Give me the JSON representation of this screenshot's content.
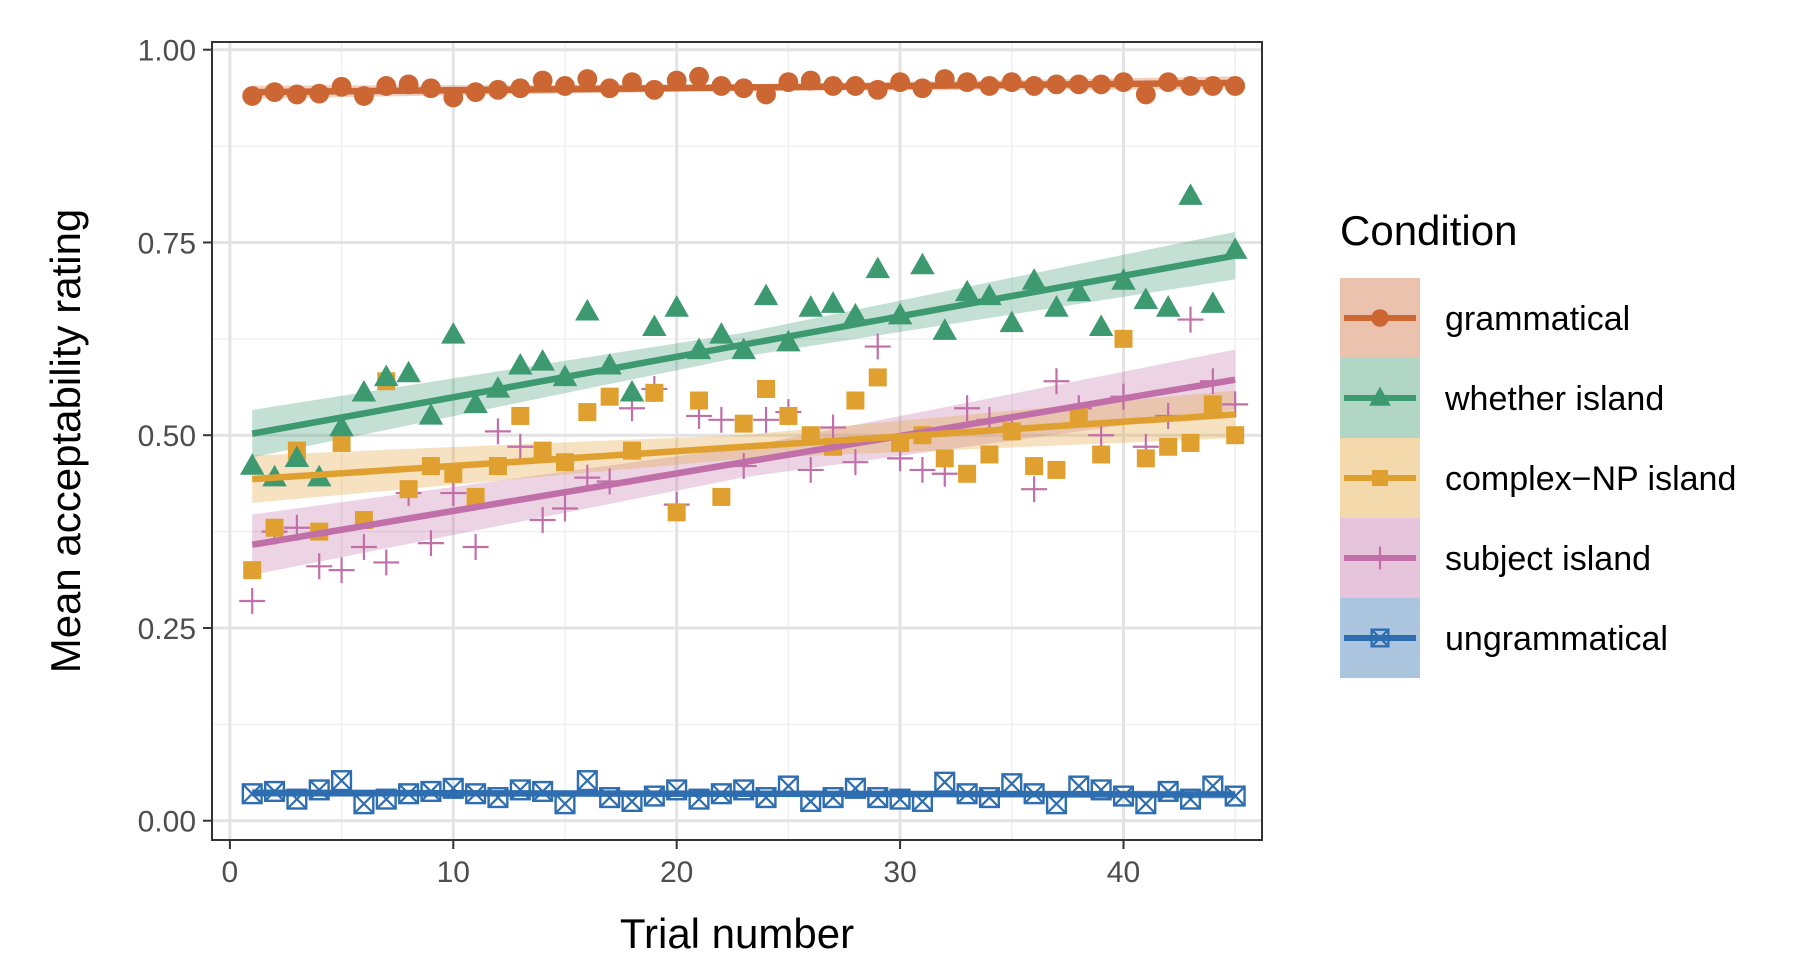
{
  "chart_data": {
    "type": "scatter",
    "xlabel": "Trial number",
    "ylabel": "Mean acceptability rating",
    "xlim": [
      -0.8,
      46.2
    ],
    "ylim": [
      -0.025,
      1.01
    ],
    "x_ticks": [
      0,
      10,
      20,
      30,
      40
    ],
    "y_ticks": [
      0.0,
      0.25,
      0.5,
      0.75,
      1.0
    ],
    "y_tick_labels": [
      "0.00",
      "0.25",
      "0.50",
      "0.75",
      "1.00"
    ],
    "grid": true,
    "legend": {
      "title": "Condition",
      "position": "right"
    },
    "x": [
      1,
      2,
      3,
      4,
      5,
      6,
      7,
      8,
      9,
      10,
      11,
      12,
      13,
      14,
      15,
      16,
      17,
      18,
      19,
      20,
      21,
      22,
      23,
      24,
      25,
      26,
      27,
      28,
      29,
      30,
      31,
      32,
      33,
      34,
      35,
      36,
      37,
      38,
      39,
      40,
      41,
      42,
      43,
      44,
      45
    ],
    "series": [
      {
        "name": "grammatical",
        "color": "#cc6633",
        "shape": "circle",
        "values": [
          0.94,
          0.945,
          0.942,
          0.943,
          0.952,
          0.94,
          0.953,
          0.955,
          0.95,
          0.938,
          0.945,
          0.948,
          0.95,
          0.96,
          0.953,
          0.962,
          0.95,
          0.958,
          0.948,
          0.96,
          0.965,
          0.953,
          0.95,
          0.942,
          0.958,
          0.96,
          0.953,
          0.953,
          0.948,
          0.958,
          0.95,
          0.962,
          0.958,
          0.953,
          0.958,
          0.953,
          0.955,
          0.955,
          0.955,
          0.958,
          0.942,
          0.958,
          0.953,
          0.953,
          0.953
        ],
        "fit": [
          0.945,
          0.957
        ],
        "band": 0.006
      },
      {
        "name": "whether island",
        "color": "#3d9970",
        "shape": "triangle",
        "values": [
          0.46,
          0.445,
          0.47,
          0.445,
          0.51,
          0.555,
          0.575,
          0.58,
          0.525,
          0.63,
          0.54,
          0.56,
          0.59,
          0.595,
          0.575,
          0.66,
          0.59,
          0.555,
          0.64,
          0.665,
          0.61,
          0.63,
          0.61,
          0.68,
          0.62,
          0.665,
          0.67,
          0.655,
          0.715,
          0.655,
          0.72,
          0.635,
          0.685,
          0.68,
          0.645,
          0.7,
          0.665,
          0.685,
          0.64,
          0.7,
          0.675,
          0.665,
          0.81,
          0.67,
          0.74
        ],
        "fit": [
          0.502,
          0.733
        ],
        "band": 0.022
      },
      {
        "name": "complex−NP island",
        "color": "#e0a030",
        "shape": "square",
        "values": [
          0.325,
          0.38,
          0.48,
          0.375,
          0.49,
          0.39,
          0.57,
          0.43,
          0.46,
          0.45,
          0.42,
          0.46,
          0.525,
          0.48,
          0.465,
          0.53,
          0.55,
          0.48,
          0.555,
          0.4,
          0.545,
          0.42,
          0.515,
          0.56,
          0.525,
          0.5,
          0.485,
          0.545,
          0.575,
          0.49,
          0.5,
          0.47,
          0.45,
          0.475,
          0.505,
          0.46,
          0.455,
          0.525,
          0.475,
          0.625,
          0.47,
          0.485,
          0.49,
          0.54,
          0.5
        ],
        "fit": [
          0.443,
          0.527
        ],
        "band": 0.022
      },
      {
        "name": "subject island",
        "color": "#c06fa8",
        "shape": "cross",
        "values": [
          0.285,
          0.375,
          0.38,
          0.33,
          0.325,
          0.355,
          0.335,
          0.425,
          0.36,
          0.425,
          0.355,
          0.505,
          0.485,
          0.39,
          0.405,
          0.445,
          0.44,
          0.535,
          0.56,
          0.41,
          0.525,
          0.52,
          0.46,
          0.52,
          0.53,
          0.455,
          0.51,
          0.465,
          0.615,
          0.47,
          0.455,
          0.45,
          0.535,
          0.52,
          0.51,
          0.43,
          0.57,
          0.535,
          0.5,
          0.55,
          0.485,
          0.525,
          0.65,
          0.57,
          0.54
        ],
        "fit": [
          0.358,
          0.572
        ],
        "band": 0.028
      },
      {
        "name": "ungrammatical",
        "color": "#2e6db0",
        "shape": "square-x",
        "values": [
          0.035,
          0.038,
          0.028,
          0.04,
          0.052,
          0.022,
          0.028,
          0.035,
          0.038,
          0.042,
          0.035,
          0.03,
          0.04,
          0.038,
          0.022,
          0.052,
          0.03,
          0.025,
          0.032,
          0.04,
          0.028,
          0.035,
          0.04,
          0.03,
          0.045,
          0.025,
          0.03,
          0.042,
          0.03,
          0.028,
          0.025,
          0.05,
          0.035,
          0.03,
          0.048,
          0.035,
          0.022,
          0.045,
          0.04,
          0.032,
          0.022,
          0.038,
          0.028,
          0.045,
          0.032
        ],
        "fit": [
          0.036,
          0.034
        ],
        "band": 0.004
      }
    ]
  }
}
